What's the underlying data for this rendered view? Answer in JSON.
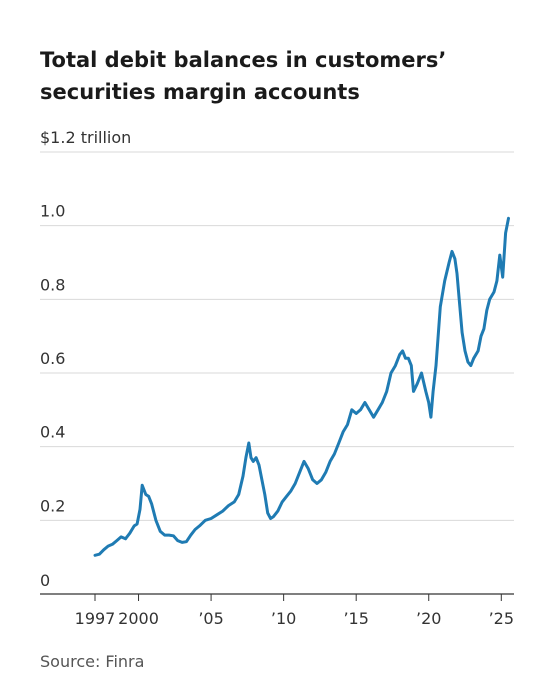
{
  "title": "Total debit balances in customers’ securities margin accounts",
  "source": "Source: Finra",
  "chart_data": {
    "type": "line",
    "title": "Total debit balances in customers’ securities margin accounts",
    "xlabel": "",
    "ylabel": "",
    "xlim": [
      1997,
      2025.6
    ],
    "ylim": [
      0,
      1.2
    ],
    "grid": true,
    "y_ticks": [
      {
        "value": 0,
        "label": "0"
      },
      {
        "value": 0.2,
        "label": "0.2"
      },
      {
        "value": 0.4,
        "label": "0.4"
      },
      {
        "value": 0.6,
        "label": "0.6"
      },
      {
        "value": 0.8,
        "label": "0.8"
      },
      {
        "value": 1.0,
        "label": "1.0"
      },
      {
        "value": 1.2,
        "label": "$1.2 trillion"
      }
    ],
    "x_ticks": [
      {
        "value": 1997,
        "label": "1997"
      },
      {
        "value": 2000,
        "label": "2000"
      },
      {
        "value": 2005,
        "label": "’05"
      },
      {
        "value": 2010,
        "label": "’10"
      },
      {
        "value": 2015,
        "label": "’15"
      },
      {
        "value": 2020,
        "label": "’20"
      },
      {
        "value": 2025,
        "label": "’25"
      }
    ],
    "color": "#1f7bb3",
    "series": [
      {
        "x": [
          1997.0,
          1997.3,
          1997.6,
          1997.9,
          1998.2,
          1998.5,
          1998.8,
          1999.1,
          1999.4,
          1999.7,
          1999.9,
          2000.1,
          2000.25,
          2000.5,
          2000.7,
          2000.9,
          2001.2,
          2001.5,
          2001.8,
          2002.1,
          2002.4,
          2002.7,
          2003.0,
          2003.3,
          2003.6,
          2003.9,
          2004.2,
          2004.6,
          2005.0,
          2005.4,
          2005.8,
          2006.2,
          2006.6,
          2006.9,
          2007.2,
          2007.4,
          2007.6,
          2007.75,
          2007.9,
          2008.1,
          2008.3,
          2008.5,
          2008.7,
          2008.9,
          2009.1,
          2009.3,
          2009.6,
          2009.9,
          2010.2,
          2010.5,
          2010.8,
          2011.1,
          2011.4,
          2011.7,
          2012.0,
          2012.3,
          2012.6,
          2012.9,
          2013.2,
          2013.5,
          2013.8,
          2014.1,
          2014.4,
          2014.7,
          2015.0,
          2015.3,
          2015.6,
          2015.9,
          2016.2,
          2016.5,
          2016.8,
          2017.1,
          2017.4,
          2017.7,
          2018.0,
          2018.2,
          2018.4,
          2018.6,
          2018.8,
          2018.95,
          2019.2,
          2019.5,
          2019.8,
          2020.0,
          2020.15,
          2020.3,
          2020.5,
          2020.8,
          2021.1,
          2021.4,
          2021.6,
          2021.8,
          2021.95,
          2022.1,
          2022.3,
          2022.5,
          2022.7,
          2022.9,
          2023.1,
          2023.4,
          2023.6,
          2023.8,
          2024.0,
          2024.2,
          2024.5,
          2024.7,
          2024.9,
          2025.1,
          2025.3,
          2025.5
        ],
        "values": [
          0.105,
          0.108,
          0.12,
          0.13,
          0.135,
          0.145,
          0.155,
          0.15,
          0.165,
          0.185,
          0.19,
          0.23,
          0.295,
          0.27,
          0.265,
          0.245,
          0.2,
          0.17,
          0.16,
          0.16,
          0.158,
          0.145,
          0.14,
          0.142,
          0.16,
          0.175,
          0.185,
          0.2,
          0.205,
          0.215,
          0.225,
          0.24,
          0.25,
          0.27,
          0.32,
          0.37,
          0.41,
          0.37,
          0.36,
          0.37,
          0.35,
          0.31,
          0.27,
          0.22,
          0.205,
          0.21,
          0.225,
          0.25,
          0.265,
          0.28,
          0.3,
          0.33,
          0.36,
          0.34,
          0.31,
          0.3,
          0.31,
          0.33,
          0.36,
          0.38,
          0.41,
          0.44,
          0.46,
          0.5,
          0.49,
          0.5,
          0.52,
          0.5,
          0.48,
          0.5,
          0.52,
          0.55,
          0.6,
          0.62,
          0.65,
          0.66,
          0.64,
          0.64,
          0.62,
          0.55,
          0.57,
          0.6,
          0.55,
          0.52,
          0.48,
          0.55,
          0.62,
          0.78,
          0.85,
          0.9,
          0.93,
          0.91,
          0.87,
          0.8,
          0.71,
          0.66,
          0.63,
          0.62,
          0.64,
          0.66,
          0.7,
          0.72,
          0.77,
          0.8,
          0.82,
          0.85,
          0.92,
          0.86,
          0.98,
          1.02
        ]
      }
    ]
  }
}
